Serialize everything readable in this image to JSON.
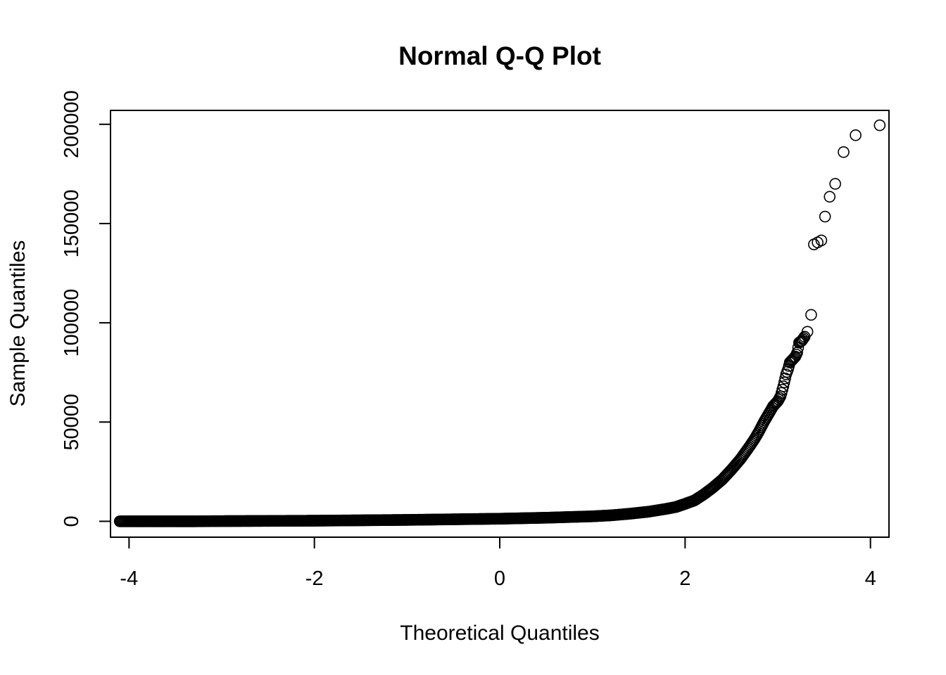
{
  "chart_data": {
    "type": "scatter",
    "title": "Normal Q-Q Plot",
    "xlabel": "Theoretical Quantiles",
    "ylabel": "Sample Quantiles",
    "xlim": [
      -4.2,
      4.2
    ],
    "ylim": [
      -8000,
      207000
    ],
    "x_ticks": [
      -4,
      -2,
      0,
      2,
      4
    ],
    "x_tick_labels": [
      "-4",
      "-2",
      "0",
      "2",
      "4"
    ],
    "y_ticks": [
      0,
      50000,
      100000,
      150000,
      200000
    ],
    "y_tick_labels": [
      "0",
      "50000",
      "100000",
      "150000",
      "200000"
    ],
    "grid": false,
    "marker": "open-circle",
    "points_x": [
      -4.1,
      -3.84,
      -3.71,
      -3.62,
      -3.55,
      -3.49,
      -3.44,
      -3.4,
      -3.36,
      -3.33,
      -3.3,
      -3.0,
      -2.5,
      -2.0,
      -1.5,
      -1.0,
      -0.5,
      0.0,
      0.5,
      1.0,
      1.2,
      1.4,
      1.6,
      1.8,
      1.9,
      2.0,
      2.1,
      2.2,
      2.3,
      2.4,
      2.5,
      2.6,
      2.7,
      2.75,
      2.8,
      2.85,
      2.9,
      2.95,
      3.0,
      3.03,
      3.06,
      3.09,
      3.11,
      3.13,
      3.15,
      3.17,
      3.19,
      3.21,
      3.23,
      3.26,
      3.29,
      3.32,
      3.36,
      3.39,
      3.43,
      3.47,
      3.51,
      3.56,
      3.62,
      3.71,
      3.84,
      4.1
    ],
    "points_y": [
      0,
      0,
      0,
      0,
      0,
      0,
      0,
      0,
      0,
      0,
      0,
      100,
      200,
      300,
      500,
      700,
      1000,
      1300,
      1800,
      2500,
      3000,
      3800,
      4800,
      6300,
      7200,
      8800,
      10500,
      13500,
      17000,
      21000,
      26000,
      31500,
      38000,
      41500,
      45500,
      50000,
      54000,
      58000,
      60500,
      63000,
      68000,
      74000,
      76500,
      80000,
      81000,
      82000,
      83000,
      85000,
      90000,
      91000,
      93000,
      95500,
      104000,
      139500,
      140500,
      141500,
      153500,
      163500,
      170000,
      186000,
      194500,
      199500
    ]
  }
}
